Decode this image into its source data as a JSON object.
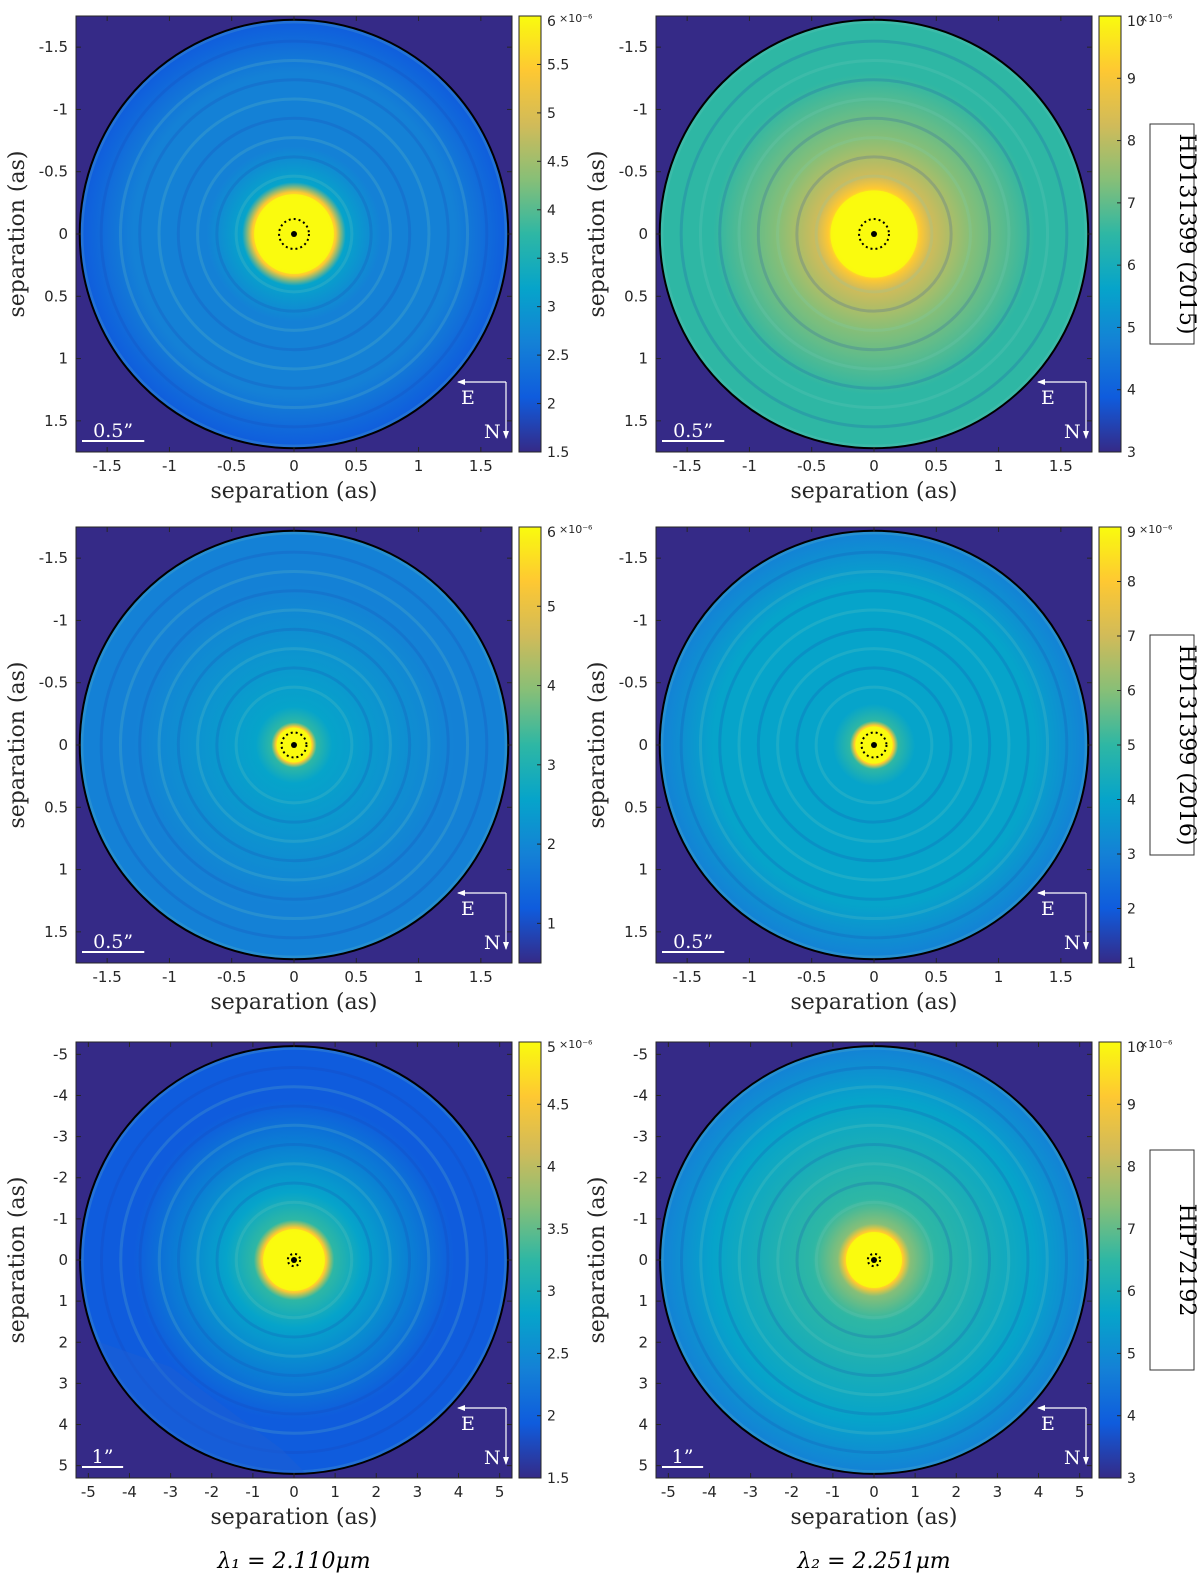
{
  "figure": {
    "xlabel": "separation (as)",
    "ylabel": "separation (as)",
    "wavelength_labels": [
      "λ₁ = 2.110μm",
      "λ₂ = 2.251μm"
    ],
    "compass": {
      "east": "E",
      "north": "N"
    }
  },
  "colors": {
    "frame_background": "#352a87",
    "colormap": [
      "#352a87",
      "#0f5cdd",
      "#1481d6",
      "#06a4ca",
      "#2eb7a4",
      "#87bf77",
      "#d1bb59",
      "#fec832",
      "#f9fb0e"
    ]
  },
  "chart_data": [
    {
      "type": "heatmap",
      "row_label": "HD131399 (2015)",
      "wavelength": "λ₁ = 2.110μm",
      "xlabel": "separation (as)",
      "ylabel": "separation (as)",
      "xlim": [
        -1.75,
        1.75
      ],
      "ylim": [
        -1.75,
        1.75
      ],
      "y_inverted": true,
      "xticks": [
        -1.5,
        -1,
        -0.5,
        0,
        0.5,
        1,
        1.5
      ],
      "yticks": [
        -1.5,
        -1,
        -0.5,
        0,
        0.5,
        1,
        1.5
      ],
      "field_radius": 1.72,
      "core_radius": 0.32,
      "mask_radius": 0.12,
      "field_level": 0.15,
      "halo_level": 0.3,
      "colorbar": {
        "min": 1.5,
        "max": 6,
        "ticks": [
          1.5,
          2,
          2.5,
          3,
          3.5,
          4,
          4.5,
          5,
          5.5,
          6
        ],
        "exponent": "×10⁻⁶"
      },
      "scale_bar": {
        "label": "0.5”",
        "length": 0.5
      }
    },
    {
      "type": "heatmap",
      "row_label": "HD131399 (2015)",
      "wavelength": "λ₂ = 2.251μm",
      "xlabel": "separation (as)",
      "ylabel": "separation (as)",
      "xlim": [
        -1.75,
        1.75
      ],
      "ylim": [
        -1.75,
        1.75
      ],
      "y_inverted": true,
      "xticks": [
        -1.5,
        -1,
        -0.5,
        0,
        0.5,
        1,
        1.5
      ],
      "yticks": [
        -1.5,
        -1,
        -0.5,
        0,
        0.5,
        1,
        1.5
      ],
      "field_radius": 1.72,
      "core_radius": 0.35,
      "mask_radius": 0.12,
      "field_level": 0.5,
      "halo_level": 0.58,
      "colorbar": {
        "min": 3,
        "max": 10,
        "ticks": [
          3,
          4,
          5,
          6,
          7,
          8,
          9,
          10
        ],
        "exponent": "×10⁻⁶"
      },
      "scale_bar": {
        "label": "0.5”",
        "length": 0.5
      }
    },
    {
      "type": "heatmap",
      "row_label": "HD131399 (2016)",
      "wavelength": "λ₁ = 2.110μm",
      "xlabel": "separation (as)",
      "ylabel": "separation (as)",
      "xlim": [
        -1.75,
        1.75
      ],
      "ylim": [
        -1.75,
        1.75
      ],
      "y_inverted": true,
      "xticks": [
        -1.5,
        -1,
        -0.5,
        0,
        0.5,
        1,
        1.5
      ],
      "yticks": [
        -1.5,
        -1,
        -0.5,
        0,
        0.5,
        1,
        1.5
      ],
      "field_radius": 1.72,
      "core_radius": 0.14,
      "mask_radius": 0.1,
      "field_level": 0.2,
      "halo_level": 0.36,
      "colorbar": {
        "min": 0.5,
        "max": 6,
        "ticks": [
          1,
          2,
          3,
          4,
          5,
          6
        ],
        "exponent": "×10⁻⁶"
      },
      "scale_bar": {
        "label": "0.5”",
        "length": 0.5
      }
    },
    {
      "type": "heatmap",
      "row_label": "HD131399 (2016)",
      "wavelength": "λ₂ = 2.251μm",
      "xlabel": "separation (as)",
      "ylabel": "separation (as)",
      "xlim": [
        -1.75,
        1.75
      ],
      "ylim": [
        -1.75,
        1.75
      ],
      "y_inverted": true,
      "xticks": [
        -1.5,
        -1,
        -0.5,
        0,
        0.5,
        1,
        1.5
      ],
      "yticks": [
        -1.5,
        -1,
        -0.5,
        0,
        0.5,
        1,
        1.5
      ],
      "field_radius": 1.72,
      "core_radius": 0.15,
      "mask_radius": 0.1,
      "field_level": 0.3,
      "halo_level": 0.42,
      "colorbar": {
        "min": 1,
        "max": 9,
        "ticks": [
          1,
          2,
          3,
          4,
          5,
          6,
          7,
          8,
          9
        ],
        "exponent": "×10⁻⁶"
      },
      "scale_bar": {
        "label": "0.5”",
        "length": 0.5
      }
    },
    {
      "type": "heatmap",
      "row_label": "HIP72192",
      "wavelength": "λ₁ = 2.110μm",
      "xlabel": "separation (as)",
      "ylabel": "separation (as)",
      "xlim": [
        -5.3,
        5.3
      ],
      "ylim": [
        -5.3,
        5.3
      ],
      "y_inverted": true,
      "xticks": [
        -5,
        -4,
        -3,
        -2,
        -1,
        0,
        1,
        2,
        3,
        4,
        5
      ],
      "yticks": [
        -5,
        -4,
        -3,
        -2,
        -1,
        0,
        1,
        2,
        3,
        4,
        5
      ],
      "field_radius": 5.2,
      "core_radius": 0.75,
      "mask_radius": 0.15,
      "field_level": 0.1,
      "halo_level": 0.38,
      "colorbar": {
        "min": 1.5,
        "max": 5,
        "ticks": [
          1.5,
          2,
          2.5,
          3,
          3.5,
          4,
          4.5,
          5
        ],
        "exponent": "×10⁻⁶"
      },
      "scale_bar": {
        "label": "1”",
        "length": 1
      }
    },
    {
      "type": "heatmap",
      "row_label": "HIP72192",
      "wavelength": "λ₂ = 2.251μm",
      "xlabel": "separation (as)",
      "ylabel": "separation (as)",
      "xlim": [
        -5.3,
        5.3
      ],
      "ylim": [
        -5.3,
        5.3
      ],
      "y_inverted": true,
      "xticks": [
        -5,
        -4,
        -3,
        -2,
        -1,
        0,
        1,
        2,
        3,
        4,
        5
      ],
      "yticks": [
        -5,
        -4,
        -3,
        -2,
        -1,
        0,
        1,
        2,
        3,
        4,
        5
      ],
      "field_radius": 5.2,
      "core_radius": 0.68,
      "mask_radius": 0.15,
      "field_level": 0.3,
      "halo_level": 0.45,
      "colorbar": {
        "min": 3,
        "max": 10,
        "ticks": [
          3,
          4,
          5,
          6,
          7,
          8,
          9,
          10
        ],
        "exponent": "×10⁻⁶"
      },
      "scale_bar": {
        "label": "1”",
        "length": 1
      }
    }
  ]
}
